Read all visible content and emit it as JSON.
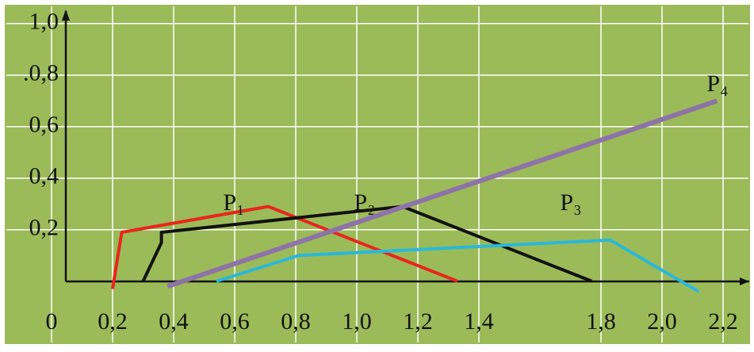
{
  "chart_data": {
    "type": "line",
    "xlim": [
      -0.05,
      2.3
    ],
    "ylim": [
      -0.05,
      1.05
    ],
    "xticks": [
      0,
      {
        "value": 0.2,
        "label": "0,2"
      },
      {
        "value": 0.4,
        "label": "0,4"
      },
      {
        "value": 0.6,
        "label": "0,6"
      },
      {
        "value": 0.8,
        "label": "0,8"
      },
      {
        "value": 1.0,
        "label": "1,0"
      },
      {
        "value": 1.2,
        "label": "1,2"
      },
      {
        "value": 1.4,
        "label": "1,4"
      },
      {
        "value": 1.8,
        "label": "1,8"
      },
      {
        "value": 2.0,
        "label": "2,0"
      },
      {
        "value": 2.2,
        "label": "2,2"
      }
    ],
    "yticks": [
      {
        "value": 0.2,
        "label": "0,2"
      },
      {
        "value": 0.4,
        "label": "0,4"
      },
      {
        "value": 0.6,
        "label": "0,6"
      },
      {
        "value": 0.8,
        "label": ".0,8"
      },
      {
        "value": 1.0,
        "label": "1,0"
      }
    ],
    "grid": true,
    "series": [
      {
        "name": "P₁",
        "color": "#e8261c",
        "x": [
          0.2,
          0.23,
          0.71,
          1.33
        ],
        "values": [
          -0.03,
          0.19,
          0.29,
          0.0
        ]
      },
      {
        "name": "P₂",
        "color": "#111111",
        "x": [
          0.3,
          0.36,
          0.36,
          1.15,
          1.77
        ],
        "values": [
          0.0,
          0.15,
          0.19,
          0.29,
          0.0
        ]
      },
      {
        "name": "P₃",
        "color": "#2ab8d8",
        "x": [
          0.54,
          0.81,
          1.83,
          2.12
        ],
        "values": [
          0.0,
          0.1,
          0.16,
          -0.04
        ]
      },
      {
        "name": "P₄",
        "color": "#8e72a8",
        "x": [
          0.38,
          2.18
        ],
        "values": [
          -0.02,
          0.7
        ]
      }
    ]
  }
}
